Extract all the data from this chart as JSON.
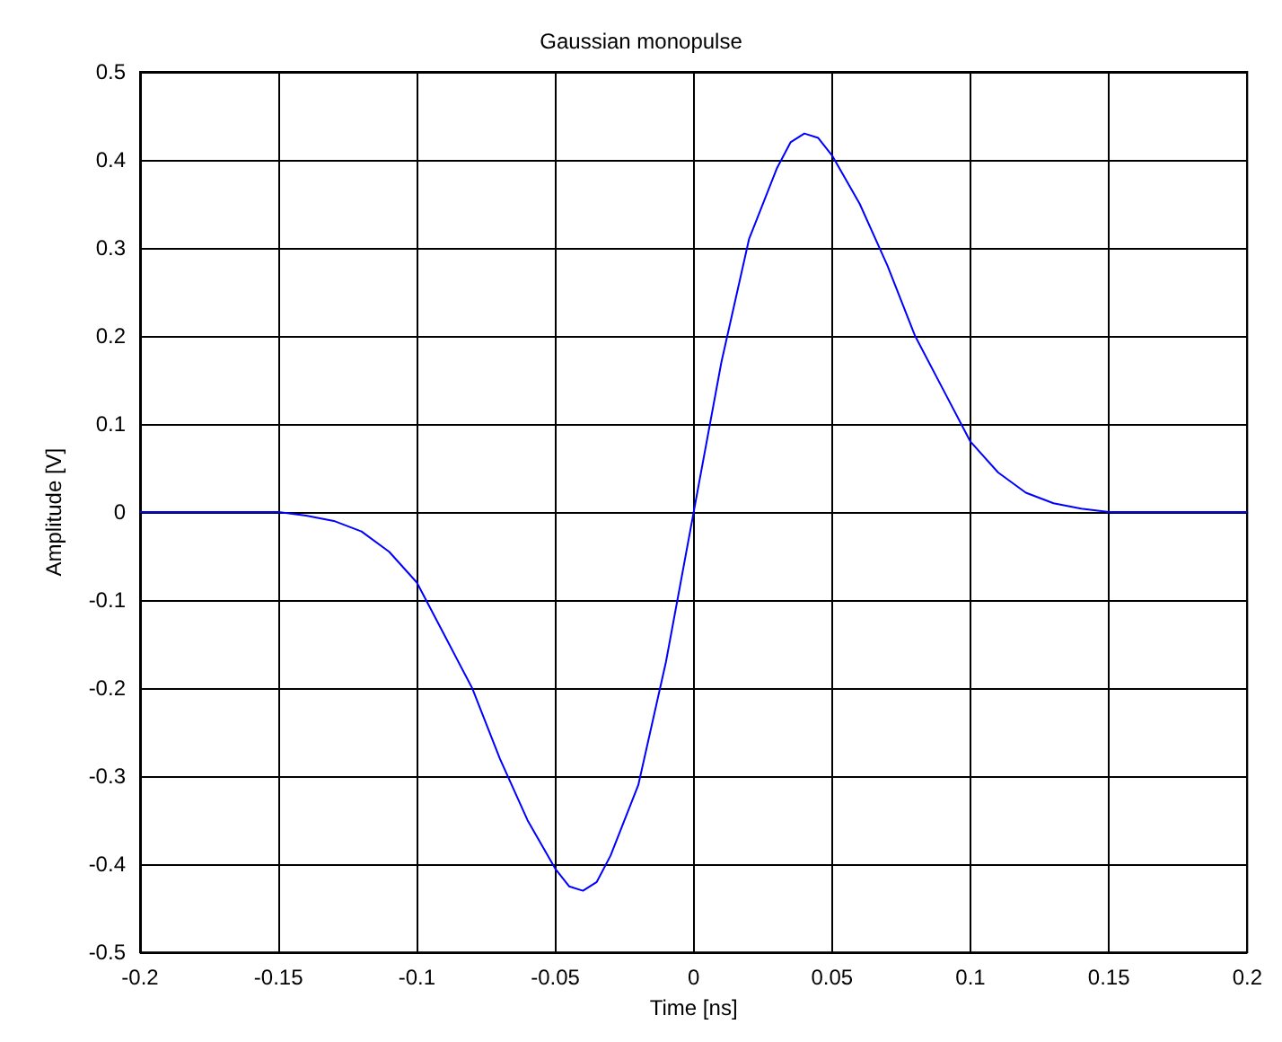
{
  "chart_data": {
    "type": "line",
    "title": "Gaussian monopulse",
    "xlabel": "Time [ns]",
    "ylabel": "Amplitude [V]",
    "x": [
      -0.2,
      -0.18,
      -0.16,
      -0.15,
      -0.14,
      -0.13,
      -0.12,
      -0.11,
      -0.1,
      -0.09,
      -0.08,
      -0.07,
      -0.06,
      -0.05,
      -0.045,
      -0.04,
      -0.035,
      -0.03,
      -0.02,
      -0.01,
      0,
      0.01,
      0.02,
      0.03,
      0.035,
      0.04,
      0.045,
      0.05,
      0.06,
      0.07,
      0.08,
      0.09,
      0.1,
      0.11,
      0.12,
      0.13,
      0.14,
      0.15,
      0.16,
      0.18,
      0.2
    ],
    "series": [
      {
        "color": "#0000ff",
        "values": [
          0,
          0,
          0,
          0,
          -0.004,
          -0.01,
          -0.022,
          -0.045,
          -0.08,
          -0.14,
          -0.2,
          -0.28,
          -0.35,
          -0.405,
          -0.425,
          -0.43,
          -0.42,
          -0.39,
          -0.31,
          -0.17,
          0,
          0.17,
          0.31,
          0.39,
          0.42,
          0.43,
          0.425,
          0.405,
          0.35,
          0.28,
          0.2,
          0.14,
          0.08,
          0.045,
          0.022,
          0.01,
          0.004,
          0,
          0,
          0,
          0
        ]
      }
    ],
    "xlim": [
      -0.2,
      0.2
    ],
    "xticks": [
      -0.2,
      -0.15,
      -0.1,
      -0.05,
      0,
      0.05,
      0.1,
      0.15,
      0.2
    ],
    "ylim": [
      -0.5,
      0.5
    ],
    "yticks": [
      -0.5,
      -0.4,
      -0.3,
      -0.2,
      -0.1,
      0,
      0.1,
      0.2,
      0.3,
      0.4,
      0.5
    ],
    "grid": true,
    "marker": "none",
    "line_style": "solid"
  }
}
